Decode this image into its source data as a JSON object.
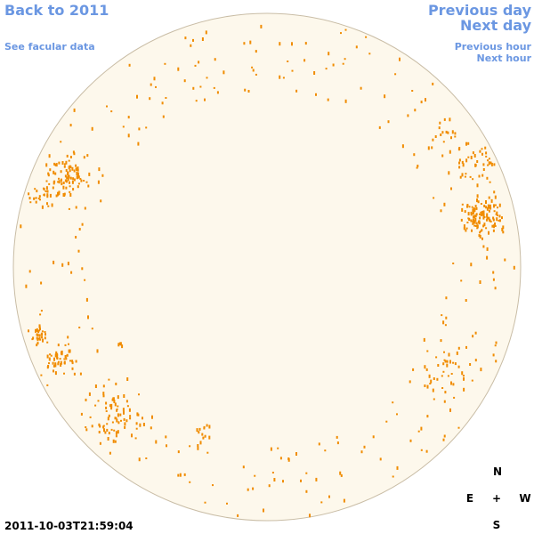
{
  "navigation": {
    "back": "Back to 2011",
    "facular": "See facular data",
    "previous_day": "Previous day",
    "next_day": "Next day",
    "previous_hour": "Previous hour",
    "next_hour": "Next hour"
  },
  "timestamp": "2011-10-03T21:59:04",
  "compass": {
    "north": "N",
    "east": "E",
    "center": "+",
    "west": "W",
    "south": "S"
  }
}
